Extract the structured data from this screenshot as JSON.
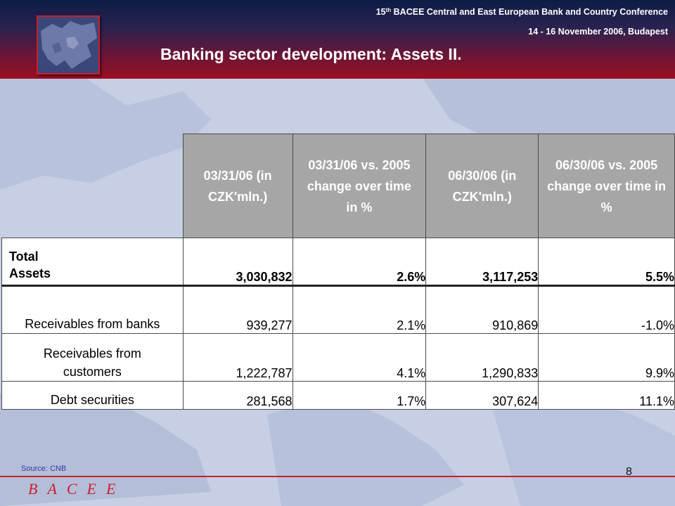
{
  "header": {
    "conference_prefix": "15",
    "conference_sup": "th",
    "conference_rest": " BACEE Central and East European Bank and Country Conference",
    "date": "14 - 16 November 2006, Budapest",
    "title": "Banking sector development: Assets II."
  },
  "table": {
    "columns": [
      "03/31/06 (in CZK'mln.)",
      "03/31/06 vs. 2005 change over time in %",
      "06/30/06 (in CZK'mln.)",
      "06/30/06 vs. 2005 change over time in %"
    ],
    "rows": [
      {
        "label": "Total Assets",
        "values": [
          "3,030,832",
          "2.6%",
          "3,117,253",
          "5.5%"
        ]
      },
      {
        "label": "Receivables from banks",
        "values": [
          "939,277",
          "2.1%",
          "910,869",
          "-1.0%"
        ]
      },
      {
        "label": "Receivables from customers",
        "values": [
          "1,222,787",
          "4.1%",
          "1,290,833",
          "9.9%"
        ]
      },
      {
        "label": "Debt securities",
        "values": [
          "281,568",
          "1.7%",
          "307,624",
          "11.1%"
        ]
      }
    ]
  },
  "footer": {
    "source": "Source: CNB",
    "page_number": "8",
    "logo_text": "BACEE"
  },
  "colors": {
    "header_top": "#0d1d46",
    "header_bottom": "#9b0f22",
    "table_header_bg": "#a6a6a6",
    "accent_red": "#c8202e",
    "background": "#c7cfe4"
  }
}
